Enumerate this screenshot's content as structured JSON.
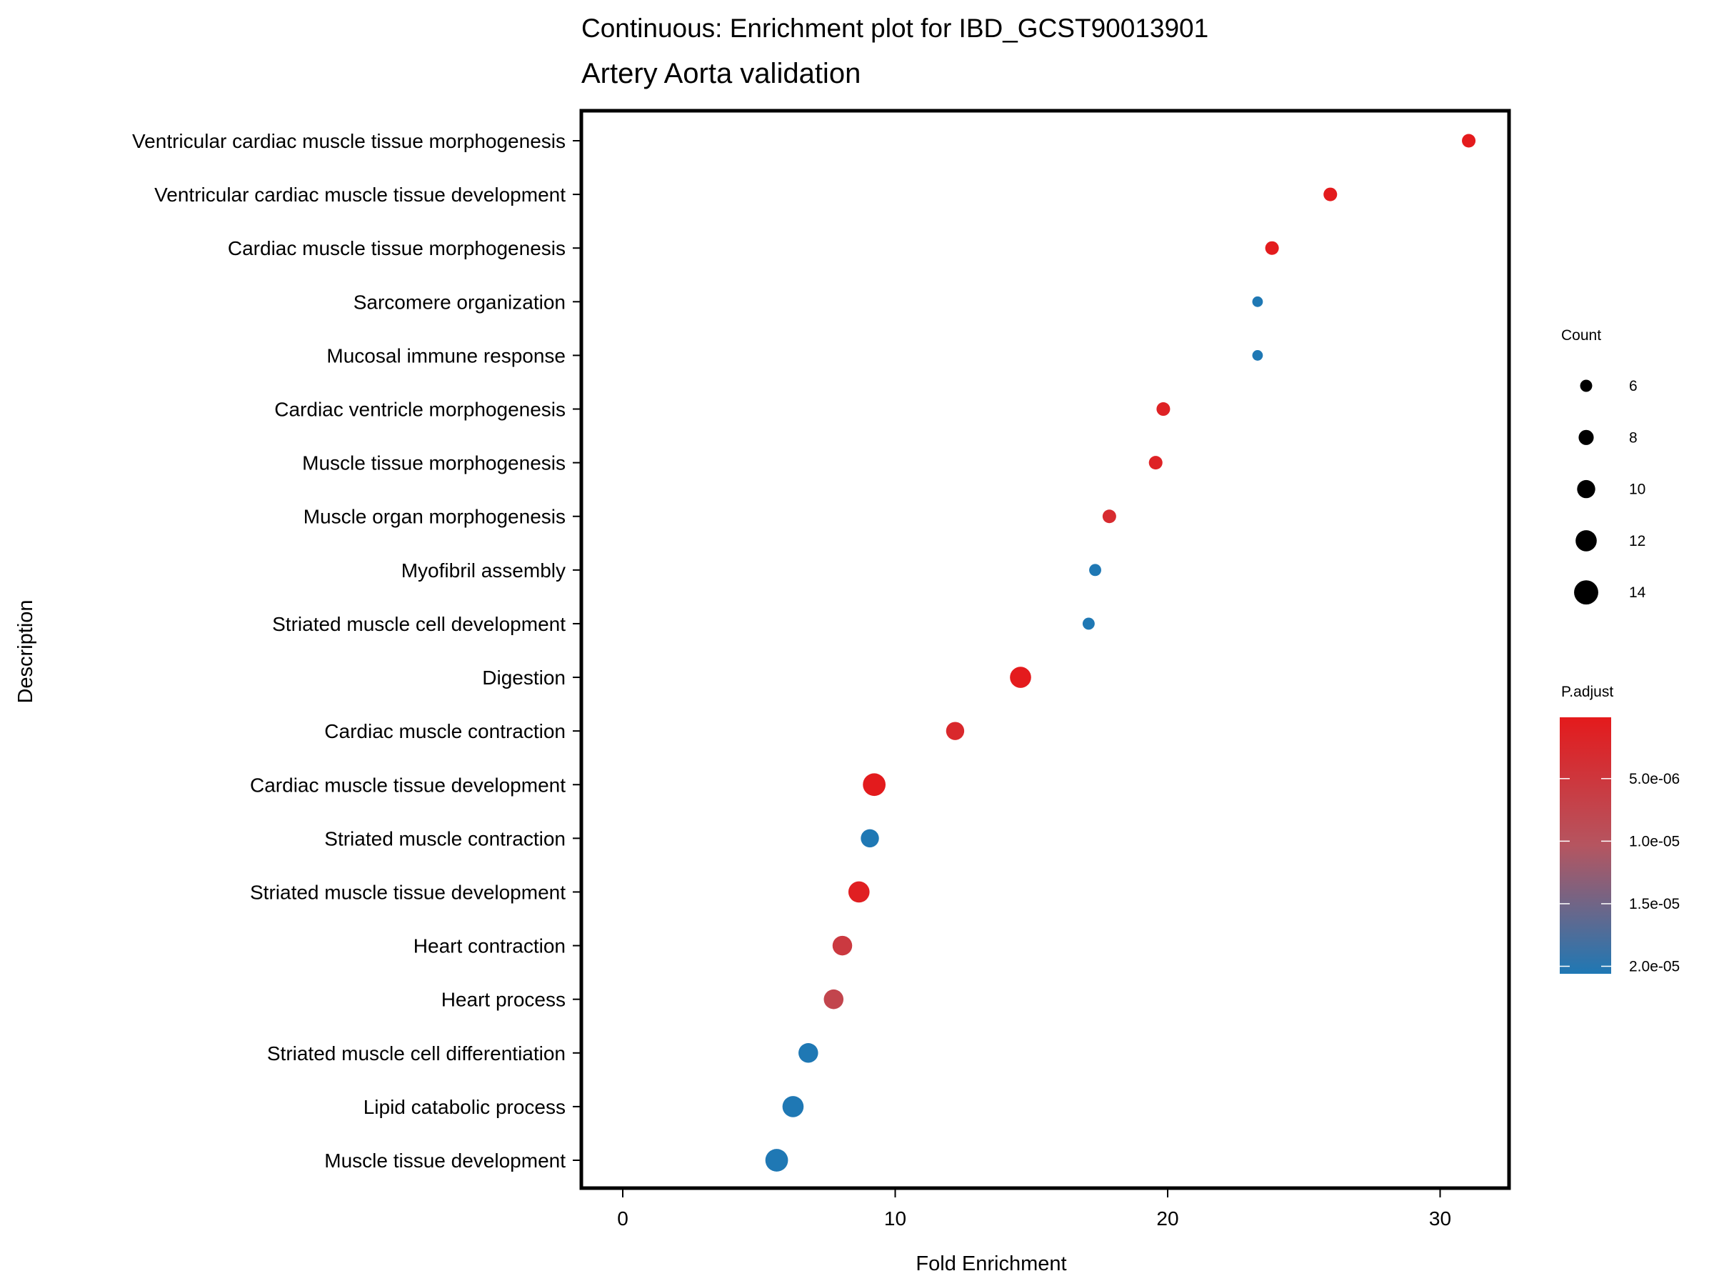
{
  "chart_data": {
    "type": "scatter",
    "title": "Continuous: Enrichment plot for IBD_GCST90013901",
    "subtitle": "Artery Aorta validation",
    "xlabel": "Fold Enrichment",
    "ylabel": "Description",
    "xlim": [
      -1.5,
      32.5
    ],
    "xticks": [
      0,
      10,
      20,
      30
    ],
    "grid": false,
    "legend_position": "right",
    "size_legend": {
      "title": "Count",
      "values": [
        6,
        8,
        10,
        12,
        14
      ]
    },
    "color_legend": {
      "title": "P.adjust",
      "range": [
        1e-07,
        2.06e-05
      ],
      "ticks": [
        {
          "value": 5e-06,
          "label": "5.0e-06"
        },
        {
          "value": 1e-05,
          "label": "1.0e-05"
        },
        {
          "value": 1.5e-05,
          "label": "1.5e-05"
        },
        {
          "value": 2e-05,
          "label": "2.0e-05"
        }
      ],
      "low_color": "#E41A1C",
      "high_color": "#1F78B4"
    },
    "points": [
      {
        "description": "Ventricular cardiac muscle tissue morphogenesis",
        "fold_enrichment": 31.05,
        "count": 7,
        "p_adjust": 2e-07
      },
      {
        "description": "Ventricular cardiac muscle tissue development",
        "fold_enrichment": 25.97,
        "count": 7,
        "p_adjust": 3e-07
      },
      {
        "description": "Cardiac muscle tissue morphogenesis",
        "fold_enrichment": 23.83,
        "count": 7,
        "p_adjust": 4e-07
      },
      {
        "description": "Sarcomere organization",
        "fold_enrichment": 23.3,
        "count": 5,
        "p_adjust": 2.06e-05
      },
      {
        "description": "Mucosal immune response",
        "fold_enrichment": 23.3,
        "count": 5,
        "p_adjust": 2.06e-05
      },
      {
        "description": "Cardiac ventricle morphogenesis",
        "fold_enrichment": 19.84,
        "count": 7,
        "p_adjust": 1.5e-06
      },
      {
        "description": "Muscle tissue morphogenesis",
        "fold_enrichment": 19.56,
        "count": 7,
        "p_adjust": 1.5e-06
      },
      {
        "description": "Muscle organ morphogenesis",
        "fold_enrichment": 17.86,
        "count": 7,
        "p_adjust": 3e-06
      },
      {
        "description": "Myofibril assembly",
        "fold_enrichment": 17.34,
        "count": 6,
        "p_adjust": 2.06e-05
      },
      {
        "description": "Striated muscle cell development",
        "fold_enrichment": 17.1,
        "count": 6,
        "p_adjust": 2.06e-05
      },
      {
        "description": "Digestion",
        "fold_enrichment": 14.6,
        "count": 12,
        "p_adjust": 2e-07
      },
      {
        "description": "Cardiac muscle contraction",
        "fold_enrichment": 12.2,
        "count": 10,
        "p_adjust": 2.5e-06
      },
      {
        "description": "Cardiac muscle tissue development",
        "fold_enrichment": 9.23,
        "count": 13,
        "p_adjust": 3e-07
      },
      {
        "description": "Striated muscle contraction",
        "fold_enrichment": 9.07,
        "count": 10,
        "p_adjust": 2.06e-05
      },
      {
        "description": "Striated muscle tissue development",
        "fold_enrichment": 8.67,
        "count": 12,
        "p_adjust": 1e-06
      },
      {
        "description": "Heart contraction",
        "fold_enrichment": 8.06,
        "count": 11,
        "p_adjust": 5.5e-06
      },
      {
        "description": "Heart process",
        "fold_enrichment": 7.74,
        "count": 11,
        "p_adjust": 7.5e-06
      },
      {
        "description": "Striated muscle cell differentiation",
        "fold_enrichment": 6.81,
        "count": 11,
        "p_adjust": 2.06e-05
      },
      {
        "description": "Lipid catabolic process",
        "fold_enrichment": 6.25,
        "count": 12,
        "p_adjust": 2.06e-05
      },
      {
        "description": "Muscle tissue development",
        "fold_enrichment": 5.65,
        "count": 13,
        "p_adjust": 2.06e-05
      }
    ]
  }
}
